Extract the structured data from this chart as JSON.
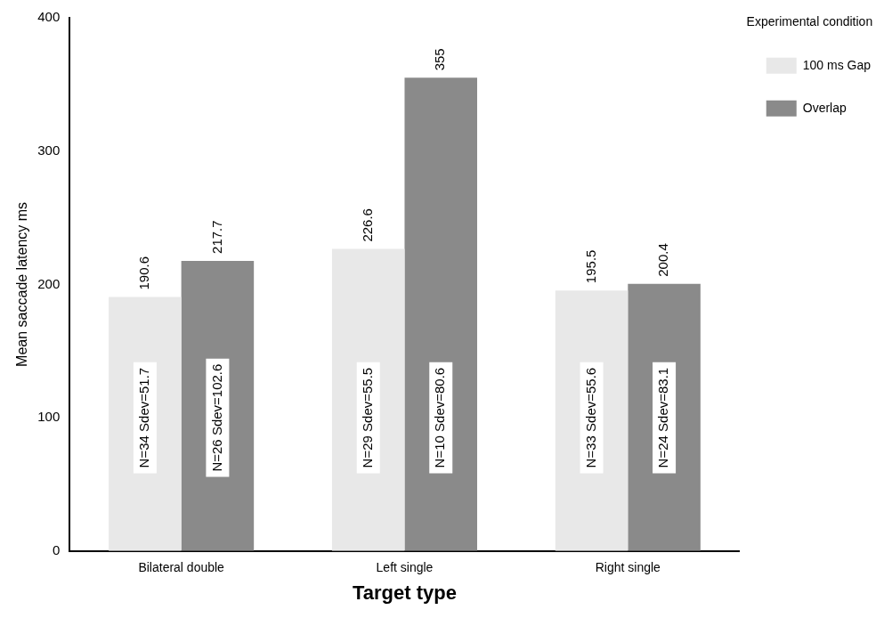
{
  "chart_data": {
    "type": "bar",
    "xlabel": "Target type",
    "ylabel": "Mean saccade latency ms",
    "legend_title": "Experimental condition",
    "categories": [
      "Bilateral double",
      "Left single",
      "Right single"
    ],
    "series": [
      {
        "name": "100 ms Gap",
        "color": "#e8e8e8",
        "values": [
          190.6,
          226.6,
          195.5
        ]
      },
      {
        "name": "Overlap",
        "color": "#8a8a8a",
        "values": [
          217.7,
          355,
          200.4
        ]
      }
    ],
    "ylim": [
      0,
      400
    ],
    "yticks": [
      0,
      100,
      200,
      300,
      400
    ],
    "grid": false,
    "legend": "top right",
    "data_labels": true,
    "annotations": [
      {
        "text": "N=34 Sdev=51.7",
        "x": "Bilateral double",
        "y": 100
      },
      {
        "text": "N=26 Sdev=102.6",
        "x": "Bilateral double",
        "y": 100
      },
      {
        "text": "N=29 Sdev=55.5",
        "x": "Left single",
        "y": 100
      },
      {
        "text": "N=10 Sdev=80.6",
        "x": "Left single",
        "y": 100
      },
      {
        "text": "N=33 Sdev=55.6",
        "x": "Right single",
        "y": 100
      },
      {
        "text": "N=24 Sdev=83.1",
        "x": "Right single",
        "y": 100
      }
    ]
  }
}
